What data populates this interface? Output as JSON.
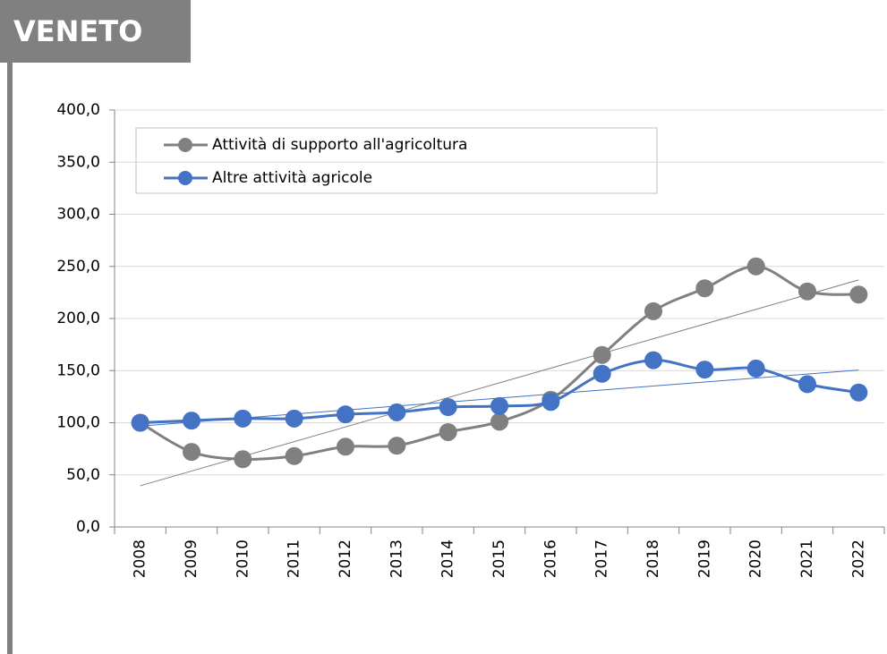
{
  "header": {
    "title": "VENETO"
  },
  "chart_data": {
    "type": "line",
    "categories": [
      "2008",
      "2009",
      "2010",
      "2011",
      "2012",
      "2013",
      "2014",
      "2015",
      "2016",
      "2017",
      "2018",
      "2019",
      "2020",
      "2021",
      "2022"
    ],
    "series": [
      {
        "name": "Attività di supporto all'agricoltura",
        "color": "#808080",
        "values": [
          100,
          72,
          65,
          68,
          77,
          78,
          91,
          101,
          122,
          165,
          207,
          229,
          250,
          226,
          223
        ]
      },
      {
        "name": "Altre attività agricole",
        "color": "#4472c4",
        "values": [
          100,
          102,
          104,
          104,
          108,
          110,
          115,
          116,
          120,
          147,
          160,
          151,
          152,
          137,
          129
        ]
      }
    ],
    "ylim": [
      0,
      400
    ],
    "yticks": [
      {
        "value": 0,
        "label": "0,0"
      },
      {
        "value": 50,
        "label": "50,0"
      },
      {
        "value": 100,
        "label": "100,0"
      },
      {
        "value": 150,
        "label": "150,0"
      },
      {
        "value": 200,
        "label": "200,0"
      },
      {
        "value": 250,
        "label": "250,0"
      },
      {
        "value": 300,
        "label": "300,0"
      },
      {
        "value": 350,
        "label": "350,0"
      },
      {
        "value": 400,
        "label": "400,0"
      }
    ],
    "grid": true,
    "trendline": true,
    "smooth": true,
    "legend": "top-left"
  }
}
